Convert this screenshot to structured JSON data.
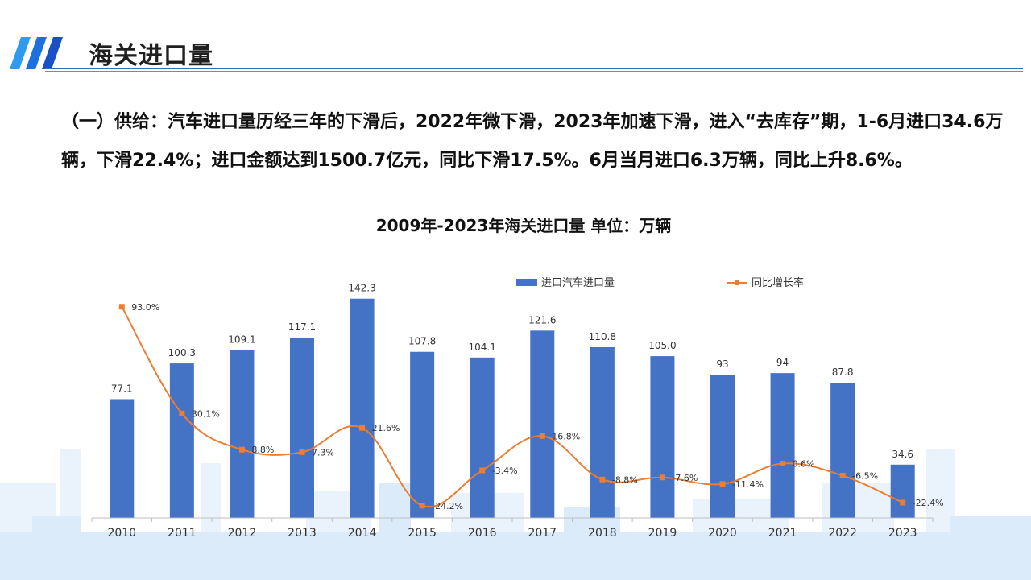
{
  "header": {
    "title": "海关进口量"
  },
  "summary": {
    "text": "（一）供给：汽车进口量历经三年的下滑后，2022年微下滑，2023年加速下滑，进入“去库存”期，1-6月进口34.6万辆，下滑22.4%；进口金额达到1500.7亿元，同比下滑17.5%。6月当月进口6.3万辆，同比上升8.6%。"
  },
  "colors": {
    "bar": "#4472c4",
    "line": "#ed7d31",
    "accent": "#1e5fd0"
  },
  "chart_data": {
    "type": "bar",
    "title": "2009年-2023年海关进口量  单位：万辆",
    "categories": [
      "2010",
      "2011",
      "2012",
      "2013",
      "2014",
      "2015",
      "2016",
      "2017",
      "2018",
      "2019",
      "2020",
      "2021",
      "2022",
      "2023"
    ],
    "legend_position": "top",
    "series": [
      {
        "name": "进口汽车进口量",
        "type": "bar",
        "values": [
          77.1,
          100.3,
          109.1,
          117.1,
          142.3,
          107.8,
          104.1,
          121.6,
          110.8,
          105.0,
          93,
          94,
          87.8,
          34.6
        ],
        "labels": [
          "77.1",
          "100.3",
          "109.1",
          "117.1",
          "142.3",
          "107.8",
          "104.1",
          "121.6",
          "110.8",
          "105.0",
          "93",
          "94",
          "87.8",
          "34.6"
        ]
      },
      {
        "name": "同比增长率",
        "type": "line",
        "axis": "secondary",
        "values": [
          93.0,
          30.1,
          8.8,
          7.3,
          21.6,
          -24.2,
          -3.4,
          16.8,
          -8.8,
          -7.6,
          -11.4,
          0.6,
          -6.5,
          -22.4
        ],
        "labels": [
          "93.0%",
          "30.1%",
          "8.8%",
          "7.3%",
          "21.6%",
          "-24.2%",
          "-3.4%",
          "16.8%",
          "-8.8%",
          "-7.6%",
          "-11.4%",
          "0.6%",
          "-6.5%",
          "-22.4%"
        ]
      }
    ],
    "y_primary_range": [
      0,
      150
    ],
    "y_secondary_range": [
      -30,
      100
    ],
    "grid": false
  }
}
